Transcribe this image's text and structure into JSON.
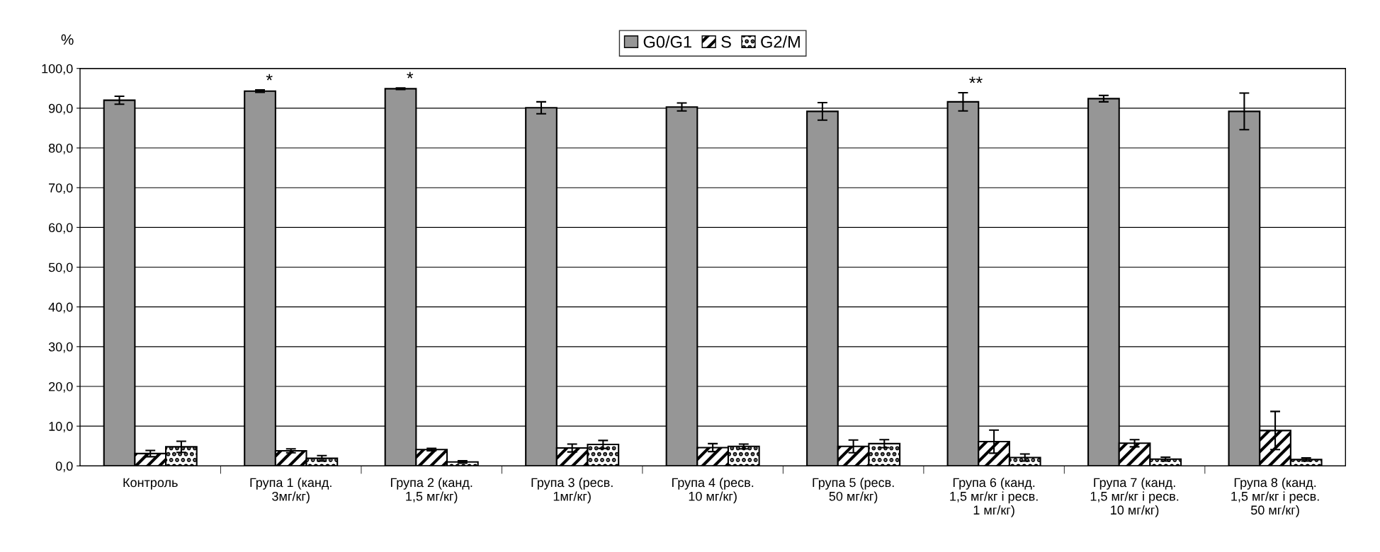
{
  "chart_data": {
    "type": "bar",
    "ylabel": "%",
    "categories": [
      "Контроль",
      "Група 1 (канд.\n3мг/кг)",
      "Група 2 (канд.\n1,5 мг/кг)",
      "Група 3 (ресв.\n1мг/кг)",
      "Група 4 (ресв.\n10 мг/кг)",
      "Група 5 (ресв.\n50 мг/кг)",
      "Група 6 (канд.\n1,5 мг/кг і ресв.\n1 мг/кг)",
      "Група 7 (канд.\n1,5 мг/кг і ресв.\n10 мг/кг)",
      "Група 8 (канд.\n1,5 мг/кг і ресв.\n50 мг/кг)"
    ],
    "series": [
      {
        "name": "G0/G1",
        "color": "#969696",
        "values": [
          92.0,
          94.3,
          94.9,
          90.1,
          90.3,
          89.2,
          91.6,
          92.4,
          89.2
        ],
        "errors": [
          1.0,
          0.3,
          0.2,
          1.5,
          1.0,
          2.2,
          2.3,
          0.8,
          4.6
        ]
      },
      {
        "name": "S",
        "color": "#000000",
        "values": [
          3.1,
          3.8,
          4.1,
          4.5,
          4.6,
          4.9,
          6.1,
          5.7,
          8.9
        ],
        "errors": [
          0.8,
          0.5,
          0.3,
          1.0,
          1.0,
          1.6,
          2.9,
          0.9,
          4.8
        ]
      },
      {
        "name": "G2/M",
        "color": "#000000",
        "values": [
          4.8,
          1.9,
          1.0,
          5.4,
          4.9,
          5.6,
          2.1,
          1.7,
          1.6
        ],
        "errors": [
          1.4,
          0.7,
          0.3,
          1.0,
          0.6,
          1.0,
          0.9,
          0.5,
          0.4
        ]
      }
    ],
    "ylim": [
      0,
      100
    ],
    "yticks": [
      {
        "value": 0,
        "label": "0,0"
      },
      {
        "value": 10,
        "label": "10,0"
      },
      {
        "value": 20,
        "label": "20,0"
      },
      {
        "value": 30,
        "label": "30,0"
      },
      {
        "value": 40,
        "label": "40,0"
      },
      {
        "value": 50,
        "label": "50,0"
      },
      {
        "value": 60,
        "label": "60,0"
      },
      {
        "value": 70,
        "label": "70,0"
      },
      {
        "value": 80,
        "label": "80,0"
      },
      {
        "value": 90,
        "label": "90,0"
      },
      {
        "value": 100,
        "label": "100,0"
      }
    ],
    "grid": "y",
    "legend": "top",
    "annotations": [
      "*",
      "*",
      "**"
    ]
  }
}
